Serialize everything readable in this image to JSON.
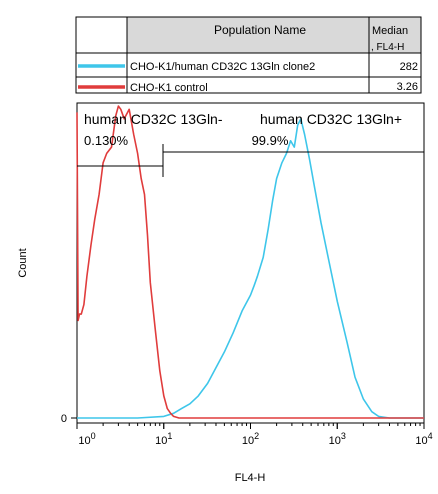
{
  "legend_table": {
    "header": {
      "name_col": "Population Name",
      "median_col_line1": "Median",
      "median_col_line2": ", FL4-H"
    },
    "rows": [
      {
        "color": "#3ec6ea",
        "name": "CHO-K1/human CD32C 13Gln clone2",
        "median": "282"
      },
      {
        "color": "#e03c3c",
        "name": "CHO-K1 control",
        "median": "3.26"
      }
    ]
  },
  "gates": [
    {
      "name": "human CD32C 13Gln-",
      "percent": "0.130%",
      "x_range": [
        1,
        5.2
      ]
    },
    {
      "name": "human CD32C 13Gln+",
      "percent": "99.9%",
      "x_range": [
        5.2,
        10000
      ]
    }
  ],
  "chart_data": {
    "type": "line",
    "xlabel": "FL4-H",
    "ylabel": "Count",
    "xscale": "log",
    "xlim": [
      1,
      10000
    ],
    "ylim": [
      0,
      100
    ],
    "x_ticks": [
      {
        "value": 1,
        "base": "10",
        "exp": "0"
      },
      {
        "value": 10,
        "base": "10",
        "exp": "1"
      },
      {
        "value": 100,
        "base": "10",
        "exp": "2"
      },
      {
        "value": 1000,
        "base": "10",
        "exp": "3"
      },
      {
        "value": 10000,
        "base": "10",
        "exp": "4"
      }
    ],
    "y_ticks": [
      {
        "value": 0,
        "label": "0"
      }
    ],
    "series": [
      {
        "name": "CHO-K1/human CD32C 13Gln clone2",
        "color": "#3ec6ea",
        "x": [
          1,
          5,
          10,
          13,
          16,
          20,
          25,
          32,
          40,
          50,
          63,
          80,
          100,
          110,
          120,
          140,
          160,
          180,
          200,
          230,
          260,
          290,
          320,
          350,
          380,
          420,
          480,
          550,
          650,
          800,
          1000,
          1300,
          1600,
          2000,
          2500,
          3000,
          4000,
          10000
        ],
        "y": [
          0,
          0,
          0.5,
          1.5,
          3,
          4.5,
          7,
          11,
          16,
          21,
          27,
          34,
          39,
          42,
          45,
          51,
          60,
          69,
          76,
          81,
          84,
          88,
          86,
          93,
          95,
          90,
          82,
          73,
          62,
          50,
          37,
          24,
          13,
          6,
          2,
          0.5,
          0,
          0
        ]
      },
      {
        "name": "CHO-K1 control",
        "color": "#e03c3c",
        "x": [
          1,
          1.03,
          1.07,
          1.12,
          1.2,
          1.3,
          1.45,
          1.6,
          1.8,
          2.0,
          2.2,
          2.5,
          2.8,
          3.0,
          3.2,
          3.5,
          4.0,
          4.5,
          5.0,
          5.5,
          6.0,
          6.5,
          7.0,
          8.0,
          9.0,
          10.0,
          11.0,
          12.0,
          13.0,
          15.0,
          20.0,
          100,
          10000
        ],
        "y": [
          97,
          31,
          33,
          33,
          36,
          45,
          55,
          63,
          71,
          81,
          84,
          86,
          96,
          99,
          98,
          95,
          98,
          90,
          84,
          76,
          71,
          58,
          43,
          28,
          15,
          7,
          3,
          1.5,
          0.5,
          0,
          0,
          0,
          0
        ]
      }
    ]
  }
}
